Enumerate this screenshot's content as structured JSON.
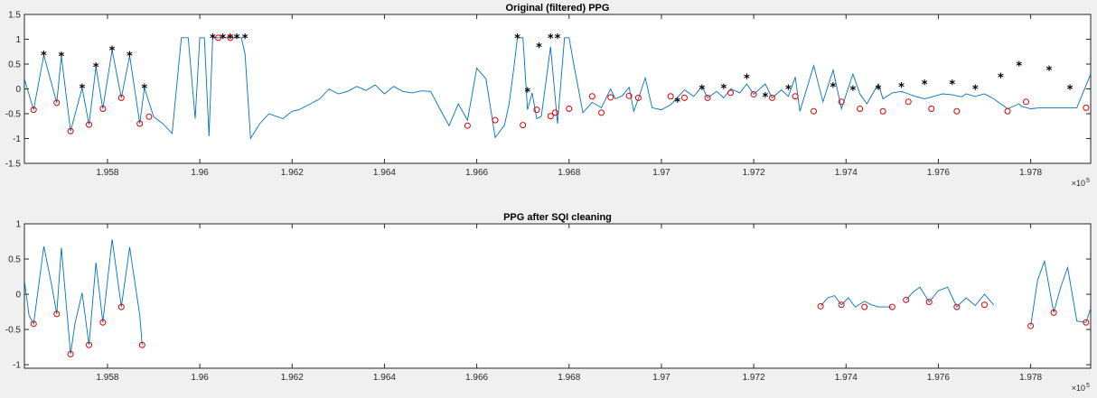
{
  "chart_data": [
    {
      "type": "line",
      "title": "Original (filtered) PPG",
      "xlim": [
        195620,
        197930
      ],
      "ylim": [
        -1.5,
        1.5
      ],
      "xticks": [
        195800,
        196000,
        196200,
        196400,
        196600,
        196800,
        197000,
        197200,
        197400,
        197600,
        197800
      ],
      "xtick_labels": [
        "1.958",
        "1.96",
        "1.962",
        "1.964",
        "1.966",
        "1.968",
        "1.97",
        "1.972",
        "1.974",
        "1.976",
        "1.978"
      ],
      "yticks": [
        -1.5,
        -1,
        -0.5,
        0,
        0.5,
        1,
        1.5
      ],
      "ytick_labels": [
        "-1.5",
        "-1",
        "-0.5",
        "0",
        "0.5",
        "1",
        "1.5"
      ],
      "x_exponent_label": "×10",
      "x_exponent_power": "5",
      "series": [
        {
          "x": [
            195620,
            195640,
            195662,
            195690,
            195700,
            195720,
            195745,
            195760,
            195775,
            195790,
            195810,
            195830,
            195848,
            195870,
            195880,
            195900,
            195920,
            195940,
            195960,
            195975,
            195990,
            196000,
            196010,
            196020,
            196028,
            196040,
            196050,
            196060,
            196066,
            196080,
            196090,
            196098,
            196110,
            196130,
            196150,
            196180,
            196200,
            196215,
            196240,
            196260,
            196280,
            196300,
            196320,
            196340,
            196360,
            196380,
            196400,
            196420,
            196440,
            196460,
            196480,
            196500,
            196520,
            196540,
            196560,
            196580,
            196600,
            196620,
            196640,
            196660,
            196670,
            196680,
            196688,
            196700,
            196710,
            196720,
            196730,
            196740,
            196760,
            196775,
            196790,
            196800,
            196810,
            196830,
            196850,
            196870,
            196890,
            196900,
            196915,
            196930,
            196940,
            196950,
            196965,
            196980,
            197000,
            197020,
            197035,
            197050,
            197070,
            197088,
            197100,
            197120,
            197135,
            197150,
            197170,
            197185,
            197200,
            197225,
            197240,
            197260,
            197275,
            197290,
            197300,
            197330,
            197350,
            197372,
            197390,
            197415,
            197430,
            197445,
            197470,
            197480,
            197500,
            197520,
            197535,
            197550,
            197570,
            197590,
            197610,
            197630,
            197650,
            197660,
            197680,
            197700,
            197720,
            197735,
            197750,
            197775,
            197780,
            197800,
            197820,
            197840,
            197860,
            197880,
            197900,
            197930
          ],
          "y": [
            0.2,
            -0.42,
            0.68,
            -0.28,
            0.66,
            -0.85,
            0.02,
            -0.72,
            0.45,
            -0.4,
            0.78,
            -0.18,
            0.67,
            -0.7,
            0.02,
            -0.56,
            -0.7,
            -0.9,
            1.03,
            1.03,
            -0.6,
            1.03,
            1.03,
            -0.95,
            1.03,
            1.03,
            1.03,
            1.03,
            1.03,
            1.03,
            1.03,
            0.7,
            -1.0,
            -0.7,
            -0.5,
            -0.6,
            -0.45,
            -0.42,
            -0.3,
            -0.2,
            0.0,
            -0.1,
            -0.05,
            0.05,
            -0.03,
            0.08,
            -0.1,
            0.05,
            -0.05,
            -0.08,
            -0.04,
            -0.05,
            -0.4,
            -0.74,
            -0.3,
            -0.63,
            0.42,
            0.2,
            -0.98,
            -0.73,
            -0.3,
            0.4,
            1.03,
            1.03,
            -0.42,
            -0.08,
            -0.6,
            -0.55,
            0.85,
            -0.7,
            1.03,
            1.03,
            0.5,
            -0.48,
            -0.27,
            -0.38,
            0.0,
            -0.2,
            -0.14,
            0.03,
            -0.45,
            -0.2,
            0.22,
            -0.38,
            -0.42,
            -0.32,
            -0.17,
            -0.02,
            -0.15,
            0.05,
            -0.18,
            -0.05,
            -0.18,
            0.0,
            -0.08,
            0.1,
            -0.11,
            0.1,
            -0.18,
            -0.02,
            -0.15,
            0.24,
            -0.45,
            0.47,
            -0.26,
            0.38,
            -0.4,
            0.3,
            -0.1,
            -0.3,
            0.1,
            -0.2,
            -0.08,
            -0.05,
            -0.1,
            -0.15,
            -0.2,
            -0.15,
            -0.1,
            -0.12,
            -0.16,
            -0.1,
            -0.15,
            -0.1,
            -0.2,
            -0.3,
            -0.4,
            -0.3,
            -0.35,
            -0.4,
            -0.38,
            -0.38,
            -0.38,
            -0.38,
            -0.38,
            0.3
          ]
        }
      ],
      "peaks": {
        "x": [
          195662,
          195700,
          195745,
          195775,
          195810,
          195848,
          195880,
          196028,
          196050,
          196066,
          196080,
          196098,
          196735,
          196760,
          196688,
          196710,
          196775,
          197035,
          197088,
          197135,
          197185,
          197225,
          197275,
          197372,
          197415,
          197470,
          197520,
          197570,
          197630,
          197680,
          197735,
          197775,
          197840,
          197885
        ],
        "y": [
          0.68,
          0.66,
          0.02,
          0.45,
          0.78,
          0.67,
          0.02,
          1.03,
          1.03,
          1.03,
          1.03,
          1.03,
          0.85,
          1.03,
          1.03,
          -0.05,
          1.03,
          -0.25,
          0.0,
          0.02,
          0.22,
          -0.15,
          0.0,
          0.05,
          -0.02,
          0.0,
          0.05,
          0.1,
          0.1,
          0.0,
          0.24,
          0.47,
          0.38,
          0.0
        ]
      },
      "onsets": {
        "x": [
          195640,
          195690,
          195720,
          195760,
          195790,
          195830,
          195870,
          195890,
          196040,
          196066,
          196760,
          196580,
          196640,
          196700,
          196730,
          196770,
          196800,
          196850,
          196870,
          196890,
          196930,
          196950,
          197020,
          197050,
          197100,
          197150,
          197200,
          197240,
          197290,
          197330,
          197390,
          197430,
          197480,
          197535,
          197585,
          197640,
          197750,
          197790,
          197920
        ],
        "y": [
          -0.42,
          -0.28,
          -0.85,
          -0.72,
          -0.4,
          -0.18,
          -0.7,
          -0.56,
          1.03,
          1.03,
          -0.55,
          -0.74,
          -0.63,
          -0.73,
          -0.42,
          -0.48,
          -0.4,
          -0.15,
          -0.48,
          -0.17,
          -0.14,
          -0.18,
          -0.15,
          -0.18,
          -0.18,
          -0.08,
          -0.11,
          -0.18,
          -0.15,
          -0.45,
          -0.26,
          -0.4,
          -0.45,
          -0.26,
          -0.4,
          -0.45,
          -0.45,
          -0.26,
          -0.38
        ]
      }
    },
    {
      "type": "line",
      "title": "PPG after SQI cleaning",
      "xlim": [
        195620,
        197930
      ],
      "ylim": [
        -1.05,
        1.0
      ],
      "xticks": [
        195800,
        196000,
        196200,
        196400,
        196600,
        196800,
        197000,
        197200,
        197400,
        197600,
        197800
      ],
      "xtick_labels": [
        "1.958",
        "1.96",
        "1.962",
        "1.964",
        "1.966",
        "1.968",
        "1.97",
        "1.972",
        "1.974",
        "1.976",
        "1.978"
      ],
      "yticks": [
        -1,
        -0.5,
        0,
        0.5,
        1
      ],
      "ytick_labels": [
        "-1",
        "-0.5",
        "0",
        "0.5",
        "1"
      ],
      "x_exponent_label": "×10",
      "x_exponent_power": "5",
      "segments": [
        {
          "x": [
            195620,
            195630,
            195640,
            195662,
            195680,
            195690,
            195700,
            195720,
            195730,
            195745,
            195760,
            195775,
            195790,
            195810,
            195830,
            195848,
            195870,
            195875
          ],
          "y": [
            0.2,
            -0.3,
            -0.42,
            0.68,
            0.1,
            -0.28,
            0.66,
            -0.85,
            -0.4,
            0.02,
            -0.72,
            0.45,
            -0.4,
            0.78,
            -0.18,
            0.67,
            -0.3,
            -0.72
          ]
        },
        {
          "x": [
            197345,
            197360,
            197375,
            197390,
            197405,
            197420,
            197440,
            197455,
            197470,
            197500
          ],
          "y": [
            -0.17,
            -0.05,
            -0.02,
            -0.15,
            -0.05,
            -0.18,
            -0.1,
            -0.15,
            -0.18,
            -0.18
          ]
        },
        {
          "x": [
            197530,
            197545,
            197560,
            197580,
            197600,
            197620,
            197640,
            197660,
            197680,
            197700,
            197720
          ],
          "y": [
            -0.08,
            0.03,
            0.1,
            -0.11,
            0.05,
            0.1,
            -0.18,
            -0.05,
            -0.16,
            0.0,
            -0.15
          ]
        },
        {
          "x": [
            197800,
            197815,
            197830,
            197850,
            197865,
            197880,
            197900,
            197920,
            197930
          ],
          "y": [
            -0.45,
            0.2,
            0.47,
            -0.26,
            0.1,
            0.38,
            -0.38,
            -0.4,
            -0.2
          ]
        }
      ],
      "onsets": {
        "x": [
          195640,
          195690,
          195720,
          195760,
          195790,
          195830,
          195875,
          197345,
          197390,
          197440,
          197500,
          197530,
          197580,
          197640,
          197700,
          197800,
          197850,
          197920
        ],
        "y": [
          -0.42,
          -0.28,
          -0.85,
          -0.72,
          -0.4,
          -0.18,
          -0.72,
          -0.17,
          -0.15,
          -0.18,
          -0.18,
          -0.08,
          -0.11,
          -0.18,
          -0.15,
          -0.45,
          -0.26,
          -0.4
        ]
      }
    }
  ]
}
